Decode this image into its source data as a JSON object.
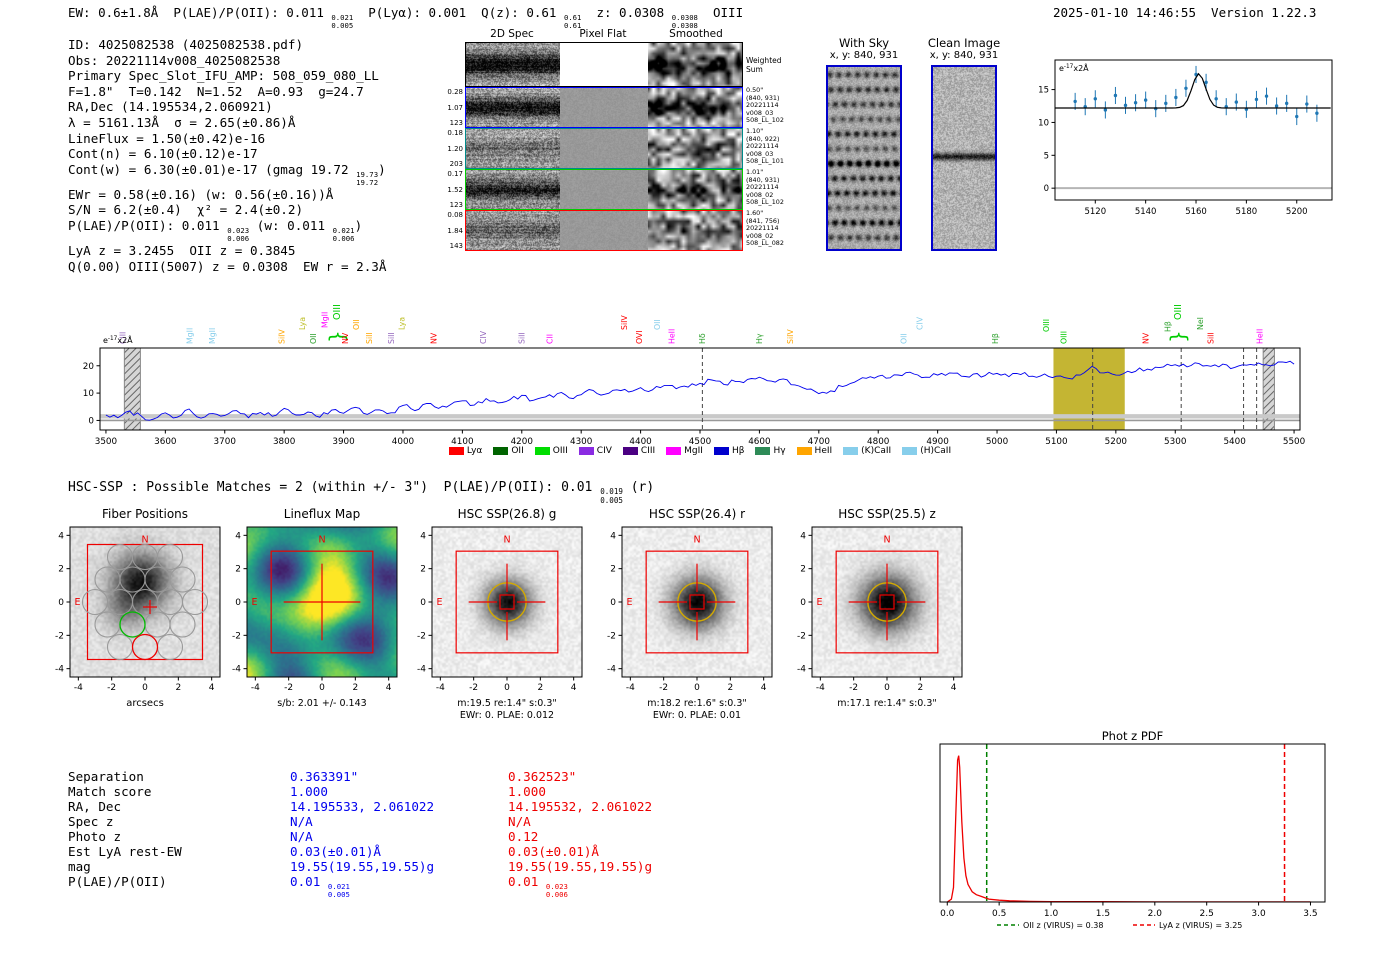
{
  "header": {
    "left": "EW: 0.6±1.8Å  P(LAE)/P(OII): 0.011 {0.021|0.005}  P(Lyα): 0.001  Q(z): 0.61 {0.61|0.61}  z: 0.0308 {0.0308|0.0308}  OIII",
    "right": "2025-01-10 14:46:55  Version 1.22.3"
  },
  "info_lines": [
    "ID: 4025082538 (4025082538.pdf)",
    "Obs: 20221114v008_4025082538",
    "Primary Spec_Slot_IFU_AMP: 508_059_080_LL",
    "F=1.8\"  T=0.142  N=1.52  A=0.93  g=24.7",
    "RA,Dec (14.195534,2.060921)",
    "λ = 5161.13Å  σ = 2.65(±0.86)Å",
    "LineFlux = 1.50(±0.42)e-16",
    "Cont(n) = 6.10(±0.12)e-17",
    "Cont(w) = 6.30(±0.01)e-17 (gmag 19.72 {19.73|19.72})",
    "EWr = 0.58(±0.16) (w: 0.56(±0.16))Å",
    "S/N = 6.2(±0.4)  χ² = 2.4(±0.2)",
    "P(LAE)/P(OII): 0.011 {0.023|0.006} (w: 0.011 {0.021|0.006})",
    "LyA z = 3.2455  OII z = 0.3845",
    "Q(0.00) OIII(5007) z = 0.0308  EW r = 2.3Å"
  ],
  "twod": {
    "col_headers": [
      "2D Spec",
      "Pixel Flat",
      "Smoothed"
    ],
    "rows": [
      {
        "border": "#000000",
        "nums": [],
        "right": [
          "Weighted",
          "Sum"
        ],
        "kind": "sum"
      },
      {
        "border": "#0000ff",
        "nums": [
          "0.28",
          "1.07",
          "123"
        ],
        "right": [
          "0.50\"",
          "(840, 931)",
          "20221114",
          "v008_03",
          "508_LL_102"
        ]
      },
      {
        "border": "#008b8b",
        "nums": [
          "0.18",
          "1.20",
          "203"
        ],
        "right": [
          "1.10\"",
          "(840, 922)",
          "20221114",
          "v008_03",
          "508_LL_101"
        ]
      },
      {
        "border": "#00cc00",
        "nums": [
          "0.17",
          "1.52",
          "123"
        ],
        "right": [
          "1.01\"",
          "(840, 931)",
          "20221114",
          "v008_02",
          "508_LL_102"
        ]
      },
      {
        "border": "#ff0000",
        "nums": [
          "0.08",
          "1.84",
          "143"
        ],
        "right": [
          "1.60\"",
          "(841, 756)",
          "20221114",
          "v008_02",
          "508_LL_082"
        ]
      }
    ]
  },
  "withsky": {
    "title": "With Sky",
    "subtitle": "x, y: 840, 931"
  },
  "clean": {
    "title": "Clean Image",
    "subtitle": "x, y: 840, 931"
  },
  "hsc_header": "HSC-SSP : Possible Matches = 2 (within +/- 3\")  P(LAE)/P(OII): 0.01 {0.019|0.005} (r)",
  "cutouts": {
    "ticks": [
      -4,
      -2,
      0,
      2,
      4
    ],
    "compass": {
      "n": "N",
      "e": "E"
    },
    "panels": [
      {
        "kind": "fiber",
        "title": "Fiber Positions",
        "xlabel": "arcsecs",
        "captions": []
      },
      {
        "kind": "lineflux",
        "title": "Lineflux Map",
        "captions": [
          "s/b: 2.01 +/- 0.143"
        ]
      },
      {
        "kind": "img",
        "title": "HSC SSP(26.8) g",
        "captions": [
          "m:19.5 re:1.4\" s:0.3\"",
          "EWr: 0. PLAE: 0.012"
        ]
      },
      {
        "kind": "img",
        "title": "HSC SSP(26.4) r",
        "captions": [
          "m:18.2 re:1.6\" s:0.3\"",
          "EWr: 0. PLAE: 0.01"
        ]
      },
      {
        "kind": "img",
        "title": "HSC SSP(25.5) z",
        "captions": [
          "m:17.1 re:1.4\" s:0.3\""
        ]
      }
    ],
    "fiber_circles": {
      "radius": 0.75,
      "gray": [
        [
          0,
          2.7
        ],
        [
          1.5,
          2.7
        ],
        [
          -1.5,
          2.7
        ],
        [
          -2.25,
          1.35
        ],
        [
          -0.75,
          1.35
        ],
        [
          0.75,
          1.35
        ],
        [
          2.25,
          1.35
        ],
        [
          -3,
          0
        ],
        [
          -1.5,
          0
        ],
        [
          0,
          0
        ],
        [
          1.5,
          0
        ],
        [
          3,
          0
        ],
        [
          -2.25,
          -1.35
        ],
        [
          0.75,
          -1.35
        ],
        [
          2.25,
          -1.35
        ],
        [
          -1.5,
          -2.7
        ],
        [
          1.5,
          -2.7
        ]
      ],
      "green": [
        -0.75,
        -1.35
      ],
      "red": [
        0,
        -2.7
      ]
    }
  },
  "match_table": {
    "rows": [
      {
        "label": "Separation",
        "blue": "0.363391\"",
        "red": "0.362523\""
      },
      {
        "label": "Match score",
        "blue": "1.000",
        "red": "1.000"
      },
      {
        "label": "RA, Dec",
        "blue": "14.195533, 2.061022",
        "red": "14.195532, 2.061022"
      },
      {
        "label": "Spec z",
        "blue": "N/A",
        "red": "N/A"
      },
      {
        "label": "Photo z",
        "blue": "N/A",
        "red": "0.12"
      },
      {
        "label": "Est LyA rest-EW",
        "blue": "0.03(±0.01)Å",
        "red": "0.03(±0.01)Å"
      },
      {
        "label": "mag",
        "blue": "19.55(19.55,19.55)g",
        "red": "19.55(19.55,19.55)g"
      },
      {
        "label": "P(LAE)/P(OII)",
        "blue": "0.01 {0.021|0.005}",
        "red": "0.01 {0.023|0.006}"
      }
    ]
  },
  "chart_data": [
    {
      "type": "scatter",
      "id": "line_fit",
      "annotation": "e^{-17}x2Å",
      "x_start": 5112,
      "x_step": 4,
      "y": [
        13.2,
        12.4,
        13.6,
        11.9,
        14.1,
        12.6,
        13.0,
        13.4,
        12.1,
        12.9,
        13.8,
        15.2,
        17.3,
        16.1,
        13.6,
        12.4,
        13.1,
        12.0,
        13.5,
        14.0,
        12.5,
        12.9,
        10.9,
        12.8,
        11.4
      ],
      "yerr": 1.3,
      "fit": {
        "baseline": 12.2,
        "amplitude": 5.2,
        "center": 5161.1,
        "sigma": 2.65
      },
      "xlim": [
        5104,
        5214
      ],
      "ylim": [
        -1.8,
        19.5
      ],
      "xticks": [
        5120,
        5140,
        5160,
        5180,
        5200
      ],
      "yticks": [
        0,
        5,
        10,
        15
      ],
      "point_color": "#1f77b4",
      "fit_color": "#000000"
    },
    {
      "type": "line",
      "id": "full_spectrum",
      "annotation": "e^{-17}x2Å",
      "x_start": 3500,
      "x_step": 20,
      "y": [
        2.0,
        1.0,
        3.5,
        1.5,
        0.5,
        2.8,
        1.2,
        4.2,
        0.8,
        2.5,
        1.8,
        3.6,
        1.0,
        2.9,
        1.5,
        4.4,
        2.0,
        3.1,
        1.2,
        3.8,
        2.6,
        4.8,
        2.2,
        3.9,
        2.8,
        5.5,
        3.6,
        6.2,
        4.4,
        5.8,
        7.2,
        5.6,
        8.0,
        6.4,
        7.6,
        9.2,
        7.4,
        8.6,
        9.8,
        8.2,
        9.4,
        11.0,
        9.6,
        11.2,
        10.4,
        12.0,
        11.2,
        12.8,
        11.6,
        12.2,
        13.6,
        14.8,
        13.2,
        14.2,
        15.0,
        15.8,
        14.4,
        15.2,
        13.0,
        11.4,
        9.8,
        10.8,
        12.4,
        14.0,
        15.4,
        16.2,
        15.6,
        16.4,
        17.0,
        15.8,
        16.6,
        17.4,
        16.2,
        17.0,
        16.4,
        17.2,
        16.0,
        16.8,
        16.2,
        17.0,
        16.2,
        15.4,
        16.6,
        19.8,
        17.4,
        16.6,
        18.0,
        19.2,
        18.4,
        19.6,
        20.4,
        19.6,
        20.8,
        19.8,
        20.6,
        19.4,
        20.2,
        21.0,
        20.0,
        21.4,
        20.6
      ],
      "xlim": [
        3490,
        5510
      ],
      "ylim": [
        -3.5,
        26.5
      ],
      "xtick_start": 3500,
      "xtick_step": 100,
      "xtick_end": 5500,
      "yticks": [
        0,
        10,
        20
      ],
      "line_color": "#0000ee",
      "highlight_band": {
        "x0": 5095,
        "x1": 5215,
        "color": "#b5a300",
        "opacity": 0.8
      },
      "hatch_bands": [
        [
          3531,
          3558
        ],
        [
          5448,
          5467
        ]
      ],
      "dashed_lines": [
        4504,
        5161,
        5310,
        5415,
        5437
      ],
      "line_labels": [
        [
          3528,
          "CIII",
          "#9467bd",
          0
        ],
        [
          3641,
          "MgII",
          "#87ceeb",
          0
        ],
        [
          3679,
          "MgII",
          "#87ceeb",
          0
        ],
        [
          3796,
          "SiIV",
          "#ffa500",
          0
        ],
        [
          3830,
          "Lya",
          "#bcbd22",
          14
        ],
        [
          3849,
          "OII",
          "#2ca02c",
          0
        ],
        [
          3868,
          "MgII",
          "#ff00ff",
          16
        ],
        [
          3889,
          "OIII",
          "#00cc00",
          24,
          1
        ],
        [
          3903,
          "NV",
          "#ff0000",
          0
        ],
        [
          3921,
          "OII",
          "#ffa500",
          14
        ],
        [
          3943,
          "SiII",
          "#ffa500",
          0
        ],
        [
          3980,
          "SiII",
          "#9467bd",
          0
        ],
        [
          3998,
          "Lya",
          "#bcbd22",
          14
        ],
        [
          4052,
          "NV",
          "#ff0000",
          0
        ],
        [
          4135,
          "CIV",
          "#9467bd",
          0
        ],
        [
          4200,
          "SiII",
          "#9467bd",
          0
        ],
        [
          4247,
          "CII",
          "#ff00ff",
          0
        ],
        [
          4372,
          "SiIV",
          "#ff0000",
          14
        ],
        [
          4398,
          "OVI",
          "#ff0000",
          0
        ],
        [
          4428,
          "OII",
          "#87ceeb",
          14
        ],
        [
          4452,
          "HeII",
          "#ff00ff",
          0
        ],
        [
          4504,
          "Hδ",
          "#2ca02c",
          0
        ],
        [
          4600,
          "Hγ",
          "#2ca02c",
          0
        ],
        [
          4652,
          "SiIV",
          "#ffa500",
          0
        ],
        [
          4843,
          "OII",
          "#87ceeb",
          0
        ],
        [
          4870,
          "CIV",
          "#87ceeb",
          14
        ],
        [
          4997,
          "Hβ",
          "#2ca02c",
          0
        ],
        [
          5083,
          "OIII",
          "#00cc00",
          12
        ],
        [
          5112,
          "OIII",
          "#00cc00",
          0
        ],
        [
          5250,
          "NV",
          "#ff0000",
          0
        ],
        [
          5287,
          "Hβ",
          "#2ca02c",
          12
        ],
        [
          5305,
          "OIII",
          "#00cc00",
          24,
          1
        ],
        [
          5342,
          "NeI",
          "#2ca02c",
          14
        ],
        [
          5360,
          "SiII",
          "#ff0000",
          0
        ],
        [
          5442,
          "HeII",
          "#ff00ff",
          0
        ]
      ],
      "legend": [
        {
          "label": "Lyα",
          "color": "#ff0000"
        },
        {
          "label": "OII",
          "color": "#006400"
        },
        {
          "label": "OIII",
          "color": "#00dd00"
        },
        {
          "label": "CIV",
          "color": "#8a2be2"
        },
        {
          "label": "CIII",
          "color": "#4b0082"
        },
        {
          "label": "MgII",
          "color": "#ff00ff"
        },
        {
          "label": "Hβ",
          "color": "#0000cd"
        },
        {
          "label": "Hγ",
          "color": "#2e8b57"
        },
        {
          "label": "HeII",
          "color": "#ffa500"
        },
        {
          "label": "(K)CaII",
          "color": "#87ceeb"
        },
        {
          "label": "(H)CaII",
          "color": "#87ceeb"
        }
      ]
    },
    {
      "type": "line",
      "id": "photz_pdf",
      "title": "Phot z PDF",
      "x": [
        0.0,
        0.04,
        0.06,
        0.08,
        0.1,
        0.11,
        0.12,
        0.14,
        0.16,
        0.18,
        0.2,
        0.24,
        0.28,
        0.32,
        0.36,
        0.4,
        0.5,
        0.6,
        0.8,
        1.0,
        1.5,
        2.0,
        2.5,
        3.0,
        3.5
      ],
      "y": [
        0.0,
        0.02,
        0.1,
        0.55,
        0.97,
        1.0,
        0.92,
        0.55,
        0.3,
        0.18,
        0.12,
        0.07,
        0.05,
        0.04,
        0.03,
        0.02,
        0.012,
        0.008,
        0.004,
        0.003,
        0.002,
        0.001,
        0.001,
        0.001,
        0.001
      ],
      "xlim": [
        -0.07,
        3.64
      ],
      "ylim": [
        0,
        1.08
      ],
      "xticks": [
        0.0,
        0.5,
        1.0,
        1.5,
        2.0,
        2.5,
        3.0,
        3.5
      ],
      "line_color": "#ee0000",
      "vlines": [
        {
          "x": 0.38,
          "color": "#008000",
          "label": "OII z (VIRUS) = 0.38"
        },
        {
          "x": 3.25,
          "color": "#ee0000",
          "label": "LyA z (VIRUS) = 3.25"
        }
      ]
    }
  ]
}
